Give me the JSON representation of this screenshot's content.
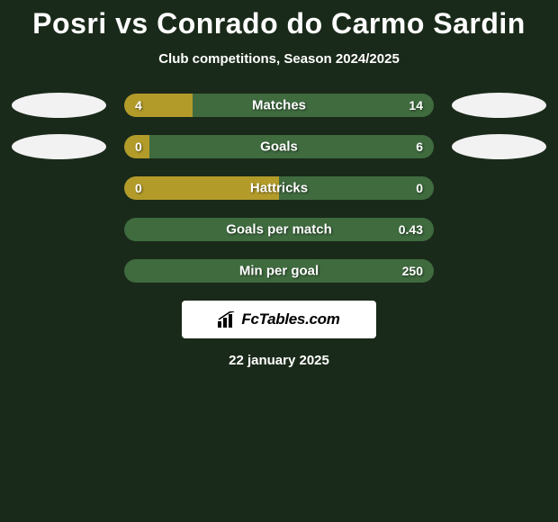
{
  "title": "Posri vs Conrado do Carmo Sardin",
  "subtitle": "Club competitions, Season 2024/2025",
  "date": "22 january 2025",
  "brand": "FcTables.com",
  "colors": {
    "background": "#1a2a1a",
    "bar_left": "#b39b2a",
    "bar_right": "#3f6b3f",
    "oval": "#f2f2f2",
    "text": "#ffffff"
  },
  "rows": [
    {
      "label": "Matches",
      "left_value": "4",
      "right_value": "14",
      "left_pct": 22,
      "right_pct": 78,
      "show_ovals": true
    },
    {
      "label": "Goals",
      "left_value": "0",
      "right_value": "6",
      "left_pct": 8,
      "right_pct": 92,
      "show_ovals": true
    },
    {
      "label": "Hattricks",
      "left_value": "0",
      "right_value": "0",
      "left_pct": 50,
      "right_pct": 50,
      "show_ovals": false
    },
    {
      "label": "Goals per match",
      "left_value": "",
      "right_value": "0.43",
      "left_pct": 0,
      "right_pct": 100,
      "show_ovals": false
    },
    {
      "label": "Min per goal",
      "left_value": "",
      "right_value": "250",
      "left_pct": 0,
      "right_pct": 100,
      "show_ovals": false
    }
  ]
}
